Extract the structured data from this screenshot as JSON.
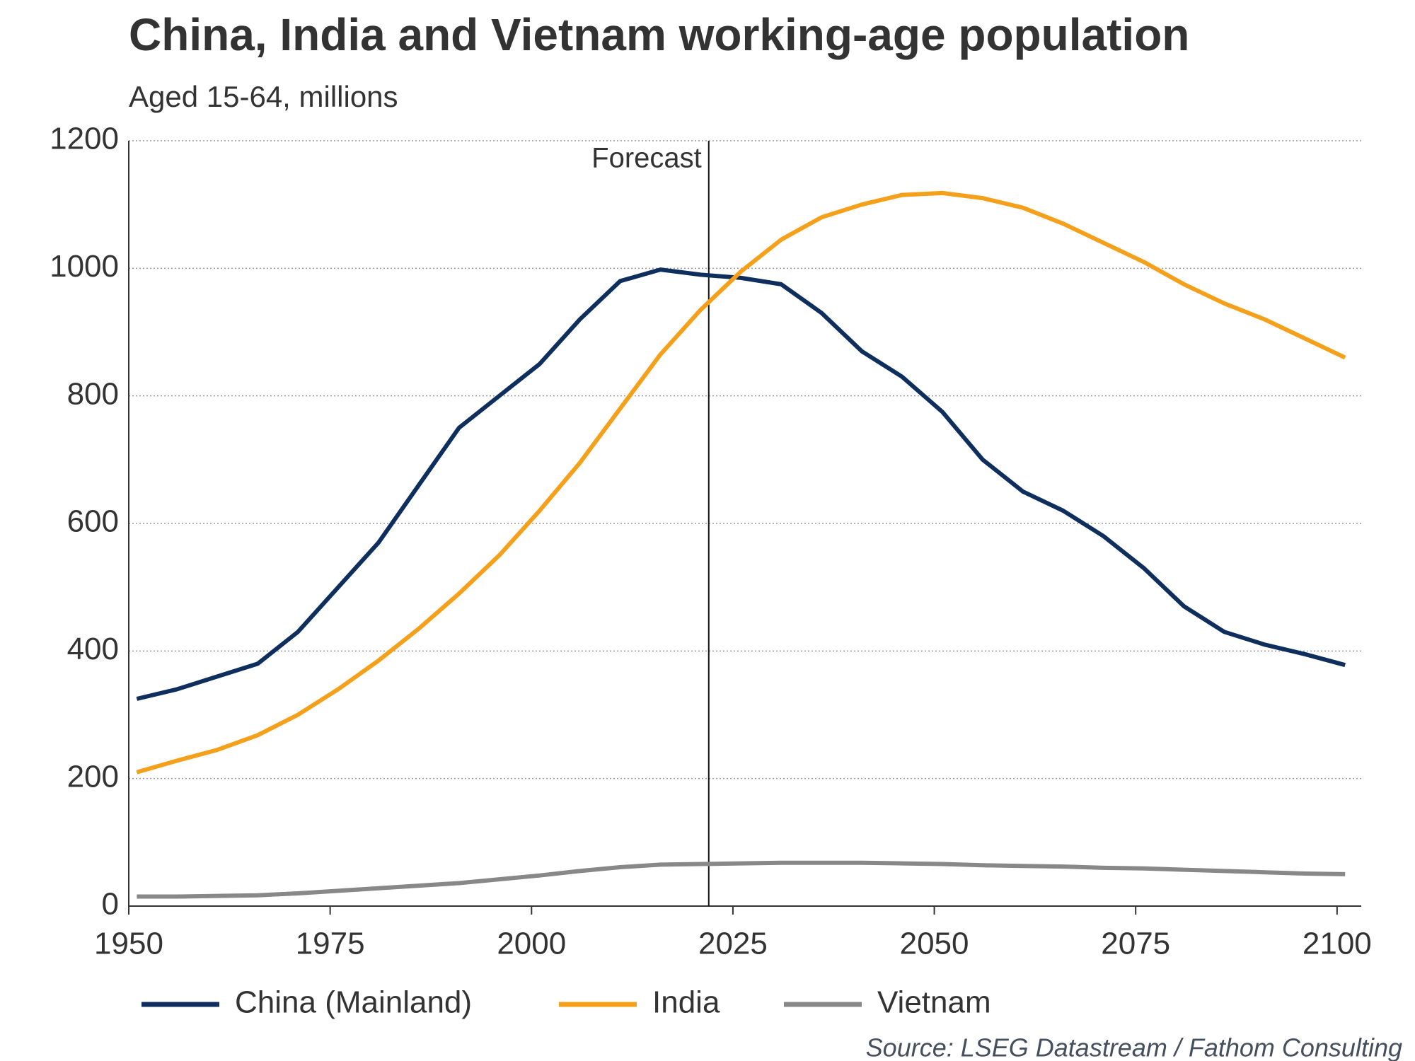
{
  "chart_data": {
    "type": "line",
    "title": "China, India and Vietnam working-age population",
    "subtitle": "Aged 15-64, millions",
    "source": "Source: LSEG Datastream / Fathom Consulting",
    "annotation": {
      "x": 2022,
      "text": "Forecast"
    },
    "x": [
      1951,
      1956,
      1961,
      1966,
      1971,
      1976,
      1981,
      1986,
      1991,
      1996,
      2001,
      2006,
      2011,
      2016,
      2021,
      2026,
      2031,
      2036,
      2041,
      2046,
      2051,
      2056,
      2061,
      2066,
      2071,
      2076,
      2081,
      2086,
      2091,
      2096,
      2101
    ],
    "series": [
      {
        "name": "China (Mainland)",
        "color": "#0e2f5e",
        "values": [
          325,
          340,
          360,
          380,
          430,
          500,
          570,
          660,
          750,
          800,
          850,
          920,
          980,
          998,
          990,
          985,
          975,
          930,
          870,
          830,
          775,
          700,
          650,
          620,
          580,
          530,
          470,
          430,
          410,
          395,
          378
        ]
      },
      {
        "name": "India",
        "color": "#f5a01a",
        "values": [
          210,
          228,
          245,
          268,
          300,
          340,
          385,
          435,
          490,
          550,
          620,
          695,
          780,
          865,
          935,
          995,
          1045,
          1080,
          1100,
          1115,
          1118,
          1110,
          1095,
          1070,
          1040,
          1010,
          975,
          945,
          920,
          890,
          860
        ]
      },
      {
        "name": "Vietnam",
        "color": "#888888",
        "values": [
          15,
          15,
          16,
          17,
          20,
          24,
          28,
          32,
          36,
          42,
          48,
          55,
          61,
          65,
          66,
          67,
          68,
          68,
          68,
          67,
          66,
          64,
          63,
          62,
          60,
          59,
          57,
          55,
          53,
          51,
          50
        ]
      }
    ],
    "xlim": [
      1950,
      2103
    ],
    "xticks": [
      1950,
      1975,
      2000,
      2025,
      2050,
      2075,
      2100
    ],
    "ylim": [
      0,
      1200
    ],
    "yticks": [
      0,
      200,
      400,
      600,
      800,
      1000,
      1200
    ],
    "grid": true,
    "legend": "bottom"
  }
}
